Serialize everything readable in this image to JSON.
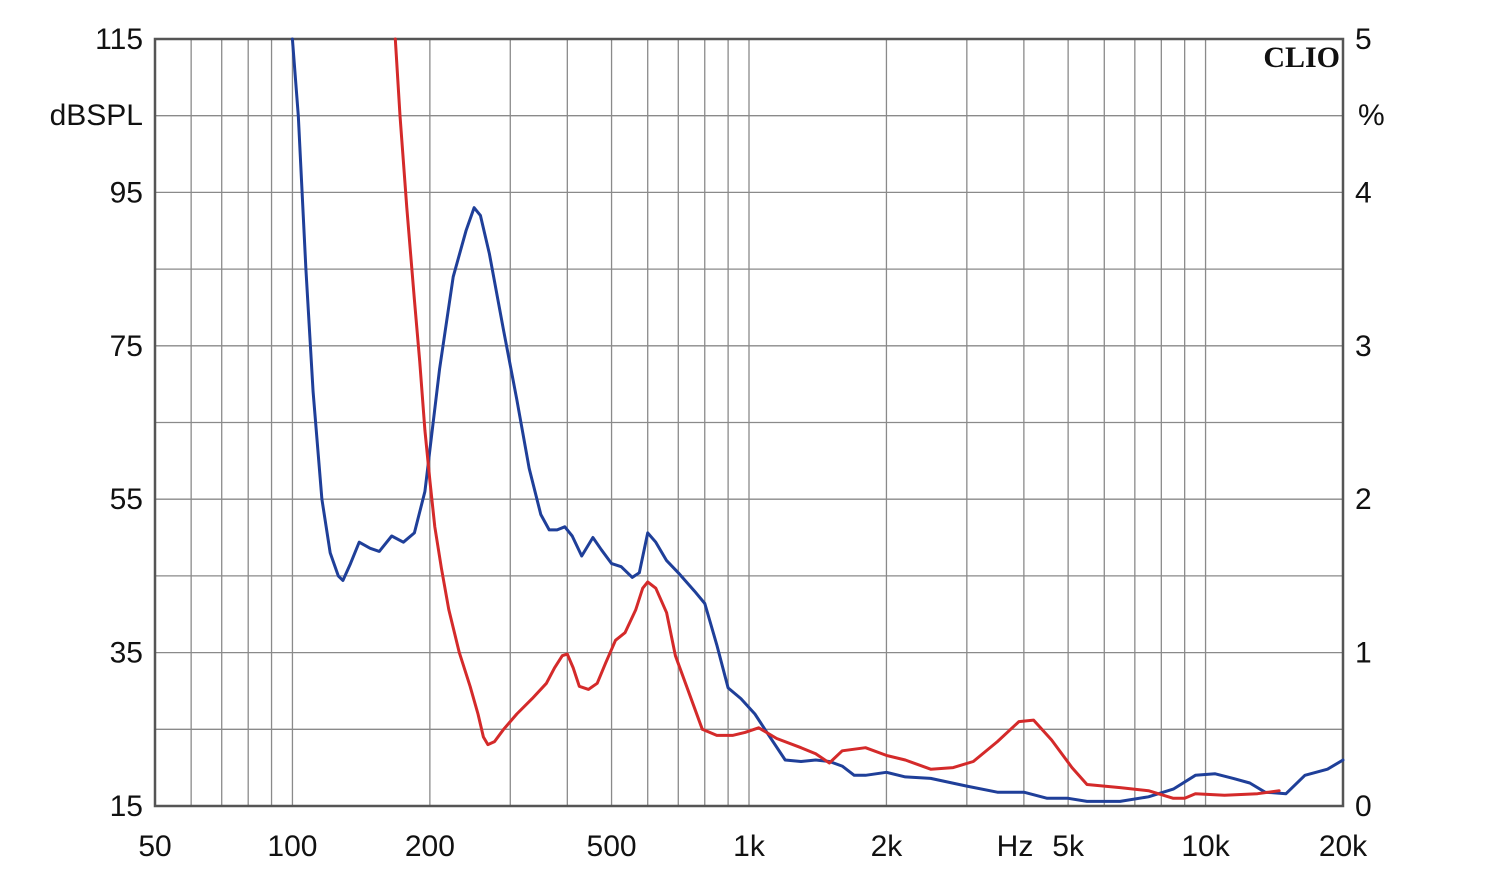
{
  "chart_data": {
    "type": "line",
    "brand": "CLIO",
    "x_unit": "Hz",
    "y_left_unit": "dBSPL",
    "y_right_unit": "%",
    "x_scale": "log",
    "xlim": [
      50,
      20000
    ],
    "ylim_left": [
      15,
      115
    ],
    "ylim_right": [
      0,
      5
    ],
    "grid": true,
    "x_ticks": [
      {
        "value": 50,
        "label": "50"
      },
      {
        "value": 100,
        "label": "100"
      },
      {
        "value": 200,
        "label": "200"
      },
      {
        "value": 500,
        "label": "500"
      },
      {
        "value": 1000,
        "label": "1k"
      },
      {
        "value": 2000,
        "label": "2k"
      },
      {
        "value": 5000,
        "label": "5k"
      },
      {
        "value": 10000,
        "label": "10k"
      },
      {
        "value": 20000,
        "label": "20k"
      }
    ],
    "y_left_ticks": [
      "115",
      "95",
      "75",
      "55",
      "35",
      "15"
    ],
    "y_right_ticks": [
      "5",
      "4",
      "3",
      "2",
      "1",
      "0"
    ],
    "series": [
      {
        "color": "#1f3f99",
        "axis": "right",
        "points": [
          [
            100,
            5.0
          ],
          [
            103,
            4.5
          ],
          [
            107,
            3.5
          ],
          [
            111,
            2.7
          ],
          [
            116,
            2.0
          ],
          [
            121,
            1.65
          ],
          [
            126,
            1.5
          ],
          [
            129,
            1.47
          ],
          [
            134,
            1.58
          ],
          [
            140,
            1.72
          ],
          [
            148,
            1.68
          ],
          [
            155,
            1.66
          ],
          [
            165,
            1.76
          ],
          [
            175,
            1.72
          ],
          [
            185,
            1.78
          ],
          [
            195,
            2.05
          ],
          [
            210,
            2.85
          ],
          [
            225,
            3.45
          ],
          [
            240,
            3.75
          ],
          [
            250,
            3.9
          ],
          [
            258,
            3.85
          ],
          [
            270,
            3.6
          ],
          [
            290,
            3.1
          ],
          [
            310,
            2.65
          ],
          [
            330,
            2.2
          ],
          [
            350,
            1.9
          ],
          [
            365,
            1.8
          ],
          [
            380,
            1.8
          ],
          [
            395,
            1.82
          ],
          [
            410,
            1.76
          ],
          [
            430,
            1.63
          ],
          [
            455,
            1.75
          ],
          [
            475,
            1.67
          ],
          [
            500,
            1.58
          ],
          [
            525,
            1.56
          ],
          [
            555,
            1.49
          ],
          [
            575,
            1.52
          ],
          [
            600,
            1.78
          ],
          [
            625,
            1.72
          ],
          [
            660,
            1.6
          ],
          [
            700,
            1.52
          ],
          [
            760,
            1.4
          ],
          [
            800,
            1.32
          ],
          [
            850,
            1.05
          ],
          [
            900,
            0.77
          ],
          [
            960,
            0.7
          ],
          [
            1030,
            0.6
          ],
          [
            1100,
            0.47
          ],
          [
            1200,
            0.3
          ],
          [
            1300,
            0.29
          ],
          [
            1400,
            0.3
          ],
          [
            1500,
            0.29
          ],
          [
            1600,
            0.26
          ],
          [
            1700,
            0.2
          ],
          [
            1800,
            0.2
          ],
          [
            2000,
            0.22
          ],
          [
            2200,
            0.19
          ],
          [
            2500,
            0.18
          ],
          [
            3000,
            0.13
          ],
          [
            3500,
            0.09
          ],
          [
            4000,
            0.09
          ],
          [
            4500,
            0.05
          ],
          [
            5000,
            0.05
          ],
          [
            5500,
            0.03
          ],
          [
            6500,
            0.03
          ],
          [
            7500,
            0.06
          ],
          [
            8500,
            0.11
          ],
          [
            9500,
            0.2
          ],
          [
            10500,
            0.21
          ],
          [
            11500,
            0.18
          ],
          [
            12500,
            0.15
          ],
          [
            13500,
            0.09
          ],
          [
            15000,
            0.08
          ],
          [
            16500,
            0.2
          ],
          [
            18500,
            0.24
          ],
          [
            20000,
            0.3
          ]
        ]
      },
      {
        "color": "#d42a2a",
        "axis": "right",
        "points": [
          [
            168,
            5.0
          ],
          [
            172,
            4.5
          ],
          [
            178,
            3.9
          ],
          [
            185,
            3.3
          ],
          [
            190,
            2.9
          ],
          [
            195,
            2.45
          ],
          [
            200,
            2.12
          ],
          [
            205,
            1.82
          ],
          [
            212,
            1.55
          ],
          [
            220,
            1.28
          ],
          [
            232,
            1.0
          ],
          [
            245,
            0.78
          ],
          [
            255,
            0.6
          ],
          [
            262,
            0.45
          ],
          [
            268,
            0.4
          ],
          [
            277,
            0.42
          ],
          [
            290,
            0.5
          ],
          [
            310,
            0.6
          ],
          [
            335,
            0.7
          ],
          [
            360,
            0.8
          ],
          [
            375,
            0.9
          ],
          [
            390,
            0.98
          ],
          [
            400,
            0.99
          ],
          [
            412,
            0.9
          ],
          [
            425,
            0.78
          ],
          [
            445,
            0.76
          ],
          [
            465,
            0.8
          ],
          [
            485,
            0.93
          ],
          [
            510,
            1.08
          ],
          [
            535,
            1.13
          ],
          [
            565,
            1.28
          ],
          [
            585,
            1.42
          ],
          [
            600,
            1.46
          ],
          [
            625,
            1.42
          ],
          [
            660,
            1.26
          ],
          [
            690,
            0.98
          ],
          [
            730,
            0.78
          ],
          [
            790,
            0.5
          ],
          [
            850,
            0.46
          ],
          [
            920,
            0.46
          ],
          [
            980,
            0.48
          ],
          [
            1050,
            0.51
          ],
          [
            1150,
            0.44
          ],
          [
            1300,
            0.38
          ],
          [
            1400,
            0.34
          ],
          [
            1500,
            0.28
          ],
          [
            1600,
            0.36
          ],
          [
            1800,
            0.38
          ],
          [
            2000,
            0.33
          ],
          [
            2200,
            0.3
          ],
          [
            2500,
            0.24
          ],
          [
            2800,
            0.25
          ],
          [
            3100,
            0.29
          ],
          [
            3500,
            0.42
          ],
          [
            3900,
            0.55
          ],
          [
            4200,
            0.56
          ],
          [
            4600,
            0.43
          ],
          [
            5100,
            0.25
          ],
          [
            5500,
            0.14
          ],
          [
            6500,
            0.12
          ],
          [
            7500,
            0.1
          ],
          [
            8500,
            0.05
          ],
          [
            9000,
            0.05
          ],
          [
            9500,
            0.08
          ],
          [
            11000,
            0.07
          ],
          [
            13000,
            0.08
          ],
          [
            14500,
            0.1
          ]
        ]
      }
    ]
  }
}
